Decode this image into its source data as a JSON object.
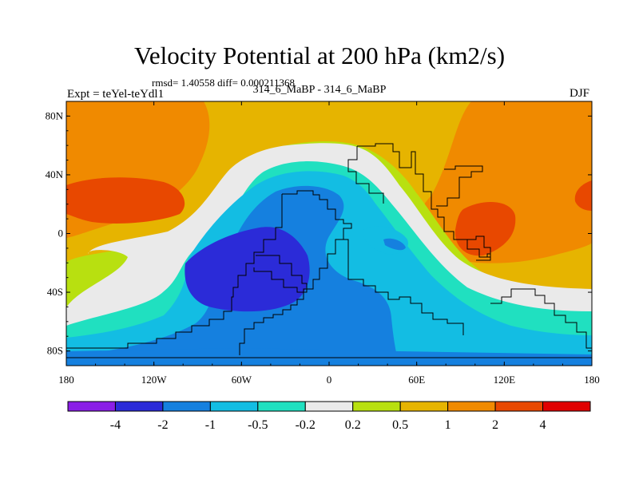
{
  "chart_data": {
    "type": "heatmap",
    "title": "Velocity Potential at 200 hPa (km2/s)",
    "subtitle": "rmsd= 1.40558 diff= 0.000211368",
    "left_label": "Expt = teYel-teYdl1",
    "center_label": "314_6_MaBP - 314_6_MaBP",
    "right_label": "DJF",
    "xlim": [
      -180,
      180
    ],
    "ylim": [
      -90,
      90
    ],
    "x_ticks": [
      {
        "value": -180,
        "label": "180"
      },
      {
        "value": -120,
        "label": "120W"
      },
      {
        "value": -60,
        "label": "60W"
      },
      {
        "value": 0,
        "label": "0"
      },
      {
        "value": 60,
        "label": "60E"
      },
      {
        "value": 120,
        "label": "120E"
      },
      {
        "value": 180,
        "label": "180"
      }
    ],
    "y_ticks": [
      {
        "value": 80,
        "label": "80N"
      },
      {
        "value": 40,
        "label": "40N"
      },
      {
        "value": 0,
        "label": "0"
      },
      {
        "value": -40,
        "label": "40S"
      },
      {
        "value": -80,
        "label": "80S"
      }
    ],
    "colorbar": {
      "colors": [
        "#8a1ee6",
        "#2b2bd8",
        "#1580df",
        "#13bde3",
        "#20e0c0",
        "#eaeaea",
        "#b8e010",
        "#e6b400",
        "#f08a00",
        "#e84800",
        "#e00000"
      ],
      "labels": [
        "-4",
        "-2",
        "-1",
        "-0.5",
        "-0.2",
        "0.2",
        "0.5",
        "1",
        "2",
        "4"
      ]
    }
  }
}
